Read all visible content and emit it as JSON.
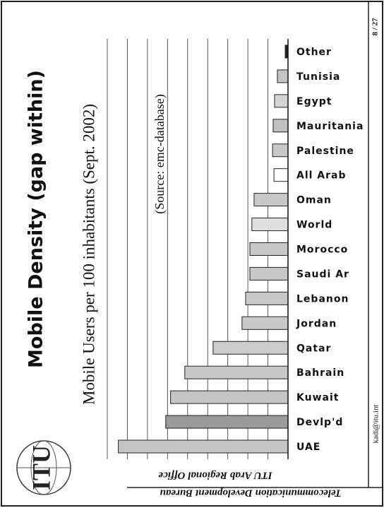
{
  "chart_data": {
    "type": "bar",
    "title": "Mobile Density (gap within)",
    "subtitle": "Mobile Users per 100 inhabitants (Sept. 2002)",
    "annotation": "(Source: emc-database)",
    "categories": [
      "Other",
      "Tunisia",
      "Egypt",
      "Mauritania",
      "Palestine",
      "All Arab",
      "Oman",
      "World",
      "Morocco",
      "Saudi Ar",
      "Lebanon",
      "Jordan",
      "Qatar",
      "Bahrain",
      "Kuwait",
      "Devlp'd",
      "UAE"
    ],
    "values": [
      1.4,
      5.3,
      6.7,
      7.4,
      7.7,
      7.0,
      16.9,
      18.0,
      19.0,
      19.0,
      21.1,
      22.9,
      37.3,
      51.4,
      58.5,
      60.9,
      84.5
    ],
    "colors": [
      "#222222",
      "#c4c4c4",
      "#d4d4d4",
      "#c0c0c0",
      "#c8c8c8",
      "#ffffff",
      "#c8c8c8",
      "#dedede",
      "#c8c8c8",
      "#c8c8c8",
      "#c8c8c8",
      "#c8c8c8",
      "#cccccc",
      "#c8c8c8",
      "#c4c4c4",
      "#9a9a9a",
      "#c4c4c4"
    ],
    "ylim": [
      0,
      90
    ],
    "yticks": [
      0,
      10,
      20,
      30,
      40,
      50,
      60,
      70,
      80,
      90
    ],
    "grid": true
  },
  "page_number": "8 / 27",
  "email": "kadi@itu.int",
  "footer": [
    "Telecommunication Development Bureau",
    "ITU Arab Regional Office"
  ],
  "logo": "ITU"
}
